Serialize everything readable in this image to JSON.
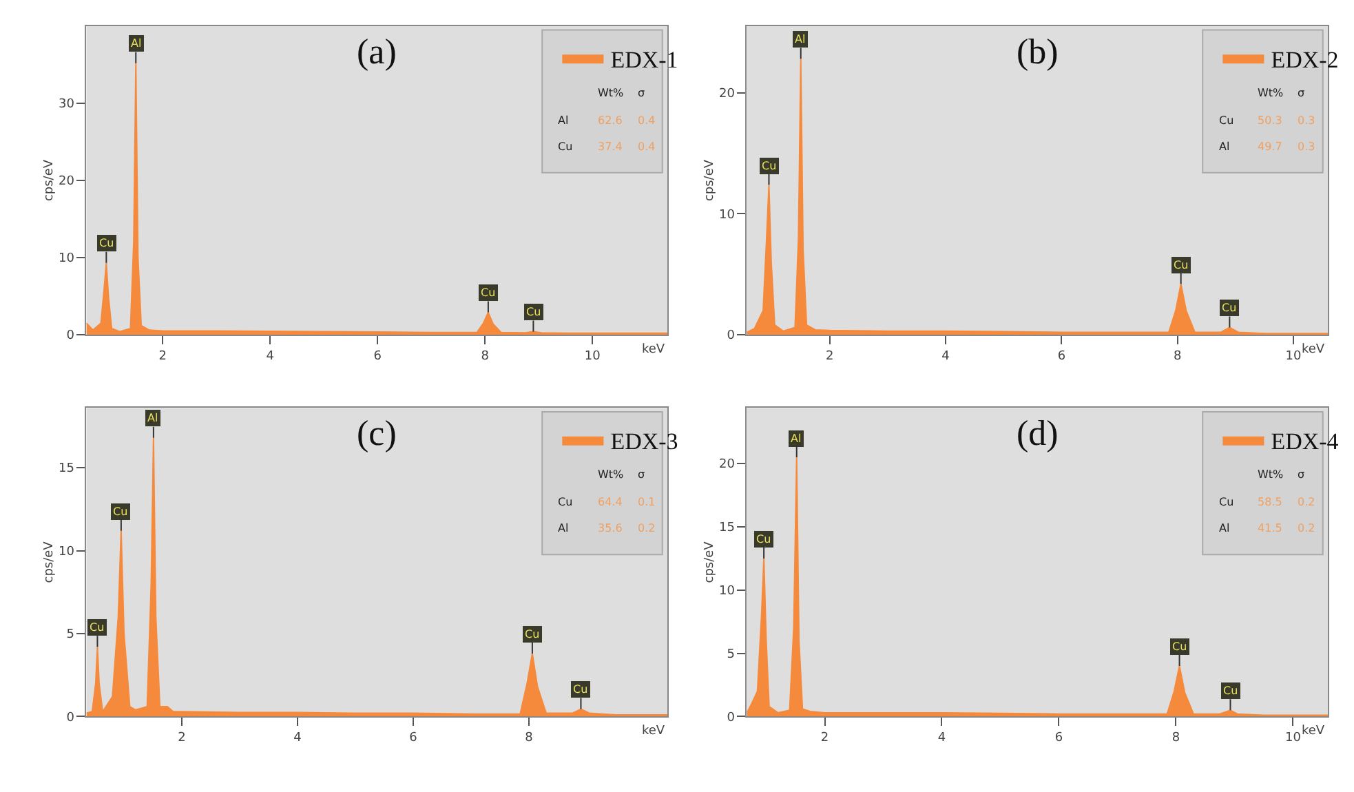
{
  "chart_data": [
    {
      "type": "area",
      "title": "(a)",
      "xlabel": "keV",
      "ylabel": "cps/eV",
      "xlim": [
        0.58,
        11.4
      ],
      "ylim": [
        0,
        40
      ],
      "xticks": [
        2,
        4,
        6,
        8,
        10
      ],
      "yticks": [
        0,
        10,
        20,
        30
      ],
      "legend": "top right",
      "grid": false,
      "series": [
        {
          "name": "EDX-1",
          "color": "#f58a3c",
          "x": [
            0.58,
            0.7,
            0.85,
            0.91,
            0.95,
            0.99,
            1.05,
            1.2,
            1.4,
            1.46,
            1.5,
            1.54,
            1.6,
            1.75,
            2,
            3,
            4,
            5,
            6,
            7,
            7.85,
            7.97,
            8.06,
            8.15,
            8.3,
            8.75,
            8.9,
            9.05,
            9.5,
            10,
            11,
            11.4
          ],
          "values": [
            1.5,
            0.6,
            1.5,
            6,
            9.3,
            5,
            0.8,
            0.4,
            0.8,
            12,
            35.2,
            10,
            1.2,
            0.6,
            0.5,
            0.5,
            0.45,
            0.4,
            0.35,
            0.3,
            0.3,
            1.5,
            2.9,
            1.4,
            0.3,
            0.25,
            0.4,
            0.25,
            0.2,
            0.2,
            0.2,
            0.2
          ]
        }
      ],
      "annotations": [
        {
          "text": "Cu",
          "x": 0.95,
          "y": 9.3
        },
        {
          "text": "Al",
          "x": 1.5,
          "y": 35.2
        },
        {
          "text": "Cu",
          "x": 8.06,
          "y": 2.9
        },
        {
          "text": "Cu",
          "x": 8.9,
          "y": 0.4
        },
        "Wt%",
        "σ",
        "Al",
        "62.6",
        "0.4",
        "Cu",
        "37.4",
        "0.4"
      ]
    },
    {
      "type": "area",
      "title": "(b)",
      "xlabel": "keV",
      "ylabel": "cps/eV",
      "xlim": [
        0.57,
        10.6
      ],
      "ylim": [
        0,
        25.5
      ],
      "xticks": [
        2,
        4,
        6,
        8,
        10
      ],
      "yticks": [
        0,
        10,
        20
      ],
      "legend": "top right",
      "grid": false,
      "series": [
        {
          "name": "EDX-2",
          "color": "#f58a3c",
          "x": [
            0.57,
            0.7,
            0.85,
            0.91,
            0.95,
            0.99,
            1.05,
            1.2,
            1.4,
            1.46,
            1.5,
            1.54,
            1.6,
            1.75,
            2,
            3,
            4,
            5,
            6,
            7,
            7.85,
            7.97,
            8.06,
            8.15,
            8.3,
            8.75,
            8.9,
            9.05,
            9.5,
            10,
            10.6
          ],
          "values": [
            0.2,
            0.5,
            2,
            8,
            12.4,
            6,
            0.8,
            0.3,
            0.6,
            8,
            22.8,
            7,
            0.8,
            0.4,
            0.35,
            0.3,
            0.3,
            0.25,
            0.2,
            0.2,
            0.2,
            2,
            4.2,
            2,
            0.2,
            0.2,
            0.6,
            0.2,
            0.1,
            0.1,
            0.1
          ]
        }
      ],
      "annotations": [
        {
          "text": "Cu",
          "x": 0.95,
          "y": 12.4
        },
        {
          "text": "Al",
          "x": 1.5,
          "y": 22.8
        },
        {
          "text": "Cu",
          "x": 8.06,
          "y": 4.2
        },
        {
          "text": "Cu",
          "x": 8.9,
          "y": 0.6
        },
        "Wt%",
        "σ",
        "Cu",
        "50.3",
        "0.3",
        "Al",
        "49.7",
        "0.3"
      ]
    },
    {
      "type": "area",
      "title": "(c)",
      "xlabel": "keV",
      "ylabel": "cps/eV",
      "xlim": [
        0.35,
        10.4
      ],
      "ylim": [
        0,
        18.6
      ],
      "xticks": [
        2,
        4,
        6,
        8
      ],
      "yticks": [
        0,
        5,
        10,
        15
      ],
      "legend": "top right",
      "grid": false,
      "series": [
        {
          "name": "EDX-3",
          "color": "#f58a3c",
          "x": [
            0.35,
            0.45,
            0.51,
            0.54,
            0.57,
            0.63,
            0.8,
            0.9,
            0.95,
            1.0,
            1.1,
            1.2,
            1.4,
            1.47,
            1.51,
            1.55,
            1.62,
            1.75,
            1.85,
            2,
            3,
            4,
            5,
            6,
            7,
            7.85,
            7.97,
            8.06,
            8.15,
            8.3,
            8.75,
            8.9,
            9.05,
            9.5,
            10,
            10.4
          ],
          "values": [
            0.2,
            0.3,
            2,
            4.2,
            2,
            0.3,
            1.2,
            6,
            11.2,
            5,
            0.6,
            0.4,
            0.6,
            8,
            16.8,
            6,
            0.6,
            0.6,
            0.3,
            0.3,
            0.25,
            0.25,
            0.2,
            0.2,
            0.15,
            0.15,
            2,
            3.8,
            1.8,
            0.2,
            0.2,
            0.45,
            0.2,
            0.1,
            0.1,
            0.1
          ]
        }
      ],
      "annotations": [
        {
          "text": "Cu",
          "x": 0.54,
          "y": 4.2
        },
        {
          "text": "Cu",
          "x": 0.95,
          "y": 11.2
        },
        {
          "text": "Al",
          "x": 1.51,
          "y": 16.8
        },
        {
          "text": "Cu",
          "x": 8.06,
          "y": 3.8
        },
        {
          "text": "Cu",
          "x": 8.9,
          "y": 0.45
        },
        "Wt%",
        "σ",
        "Cu",
        "64.4",
        "0.1",
        "Al",
        "35.6",
        "0.2"
      ]
    },
    {
      "type": "area",
      "title": "(d)",
      "xlabel": "keV",
      "ylabel": "cps/eV",
      "xlim": [
        0.67,
        10.6
      ],
      "ylim": [
        0,
        24.4
      ],
      "xticks": [
        2,
        4,
        6,
        8,
        10
      ],
      "yticks": [
        0,
        5,
        10,
        15,
        20
      ],
      "legend": "top right",
      "grid": false,
      "series": [
        {
          "name": "EDX-4",
          "color": "#f58a3c",
          "x": [
            0.67,
            0.75,
            0.85,
            0.92,
            0.96,
            1.0,
            1.05,
            1.2,
            1.4,
            1.47,
            1.52,
            1.56,
            1.62,
            1.75,
            2,
            3,
            4,
            5,
            6,
            7,
            7.85,
            7.97,
            8.06,
            8.15,
            8.3,
            8.75,
            8.93,
            9.05,
            9.5,
            10,
            10.6
          ],
          "values": [
            0.3,
            1,
            2,
            8,
            12.5,
            6,
            0.8,
            0.3,
            0.5,
            7,
            20.5,
            6,
            0.6,
            0.4,
            0.3,
            0.3,
            0.3,
            0.25,
            0.2,
            0.2,
            0.2,
            2,
            4.0,
            1.9,
            0.2,
            0.2,
            0.5,
            0.2,
            0.1,
            0.1,
            0.1
          ]
        }
      ],
      "annotations": [
        {
          "text": "Cu",
          "x": 0.96,
          "y": 12.5
        },
        {
          "text": "Al",
          "x": 1.52,
          "y": 20.5
        },
        {
          "text": "Cu",
          "x": 8.06,
          "y": 4.0
        },
        {
          "text": "Cu",
          "x": 8.93,
          "y": 0.5
        },
        "Wt%",
        "σ",
        "Cu",
        "58.5",
        "0.2",
        "Al",
        "41.5",
        "0.2"
      ]
    }
  ]
}
